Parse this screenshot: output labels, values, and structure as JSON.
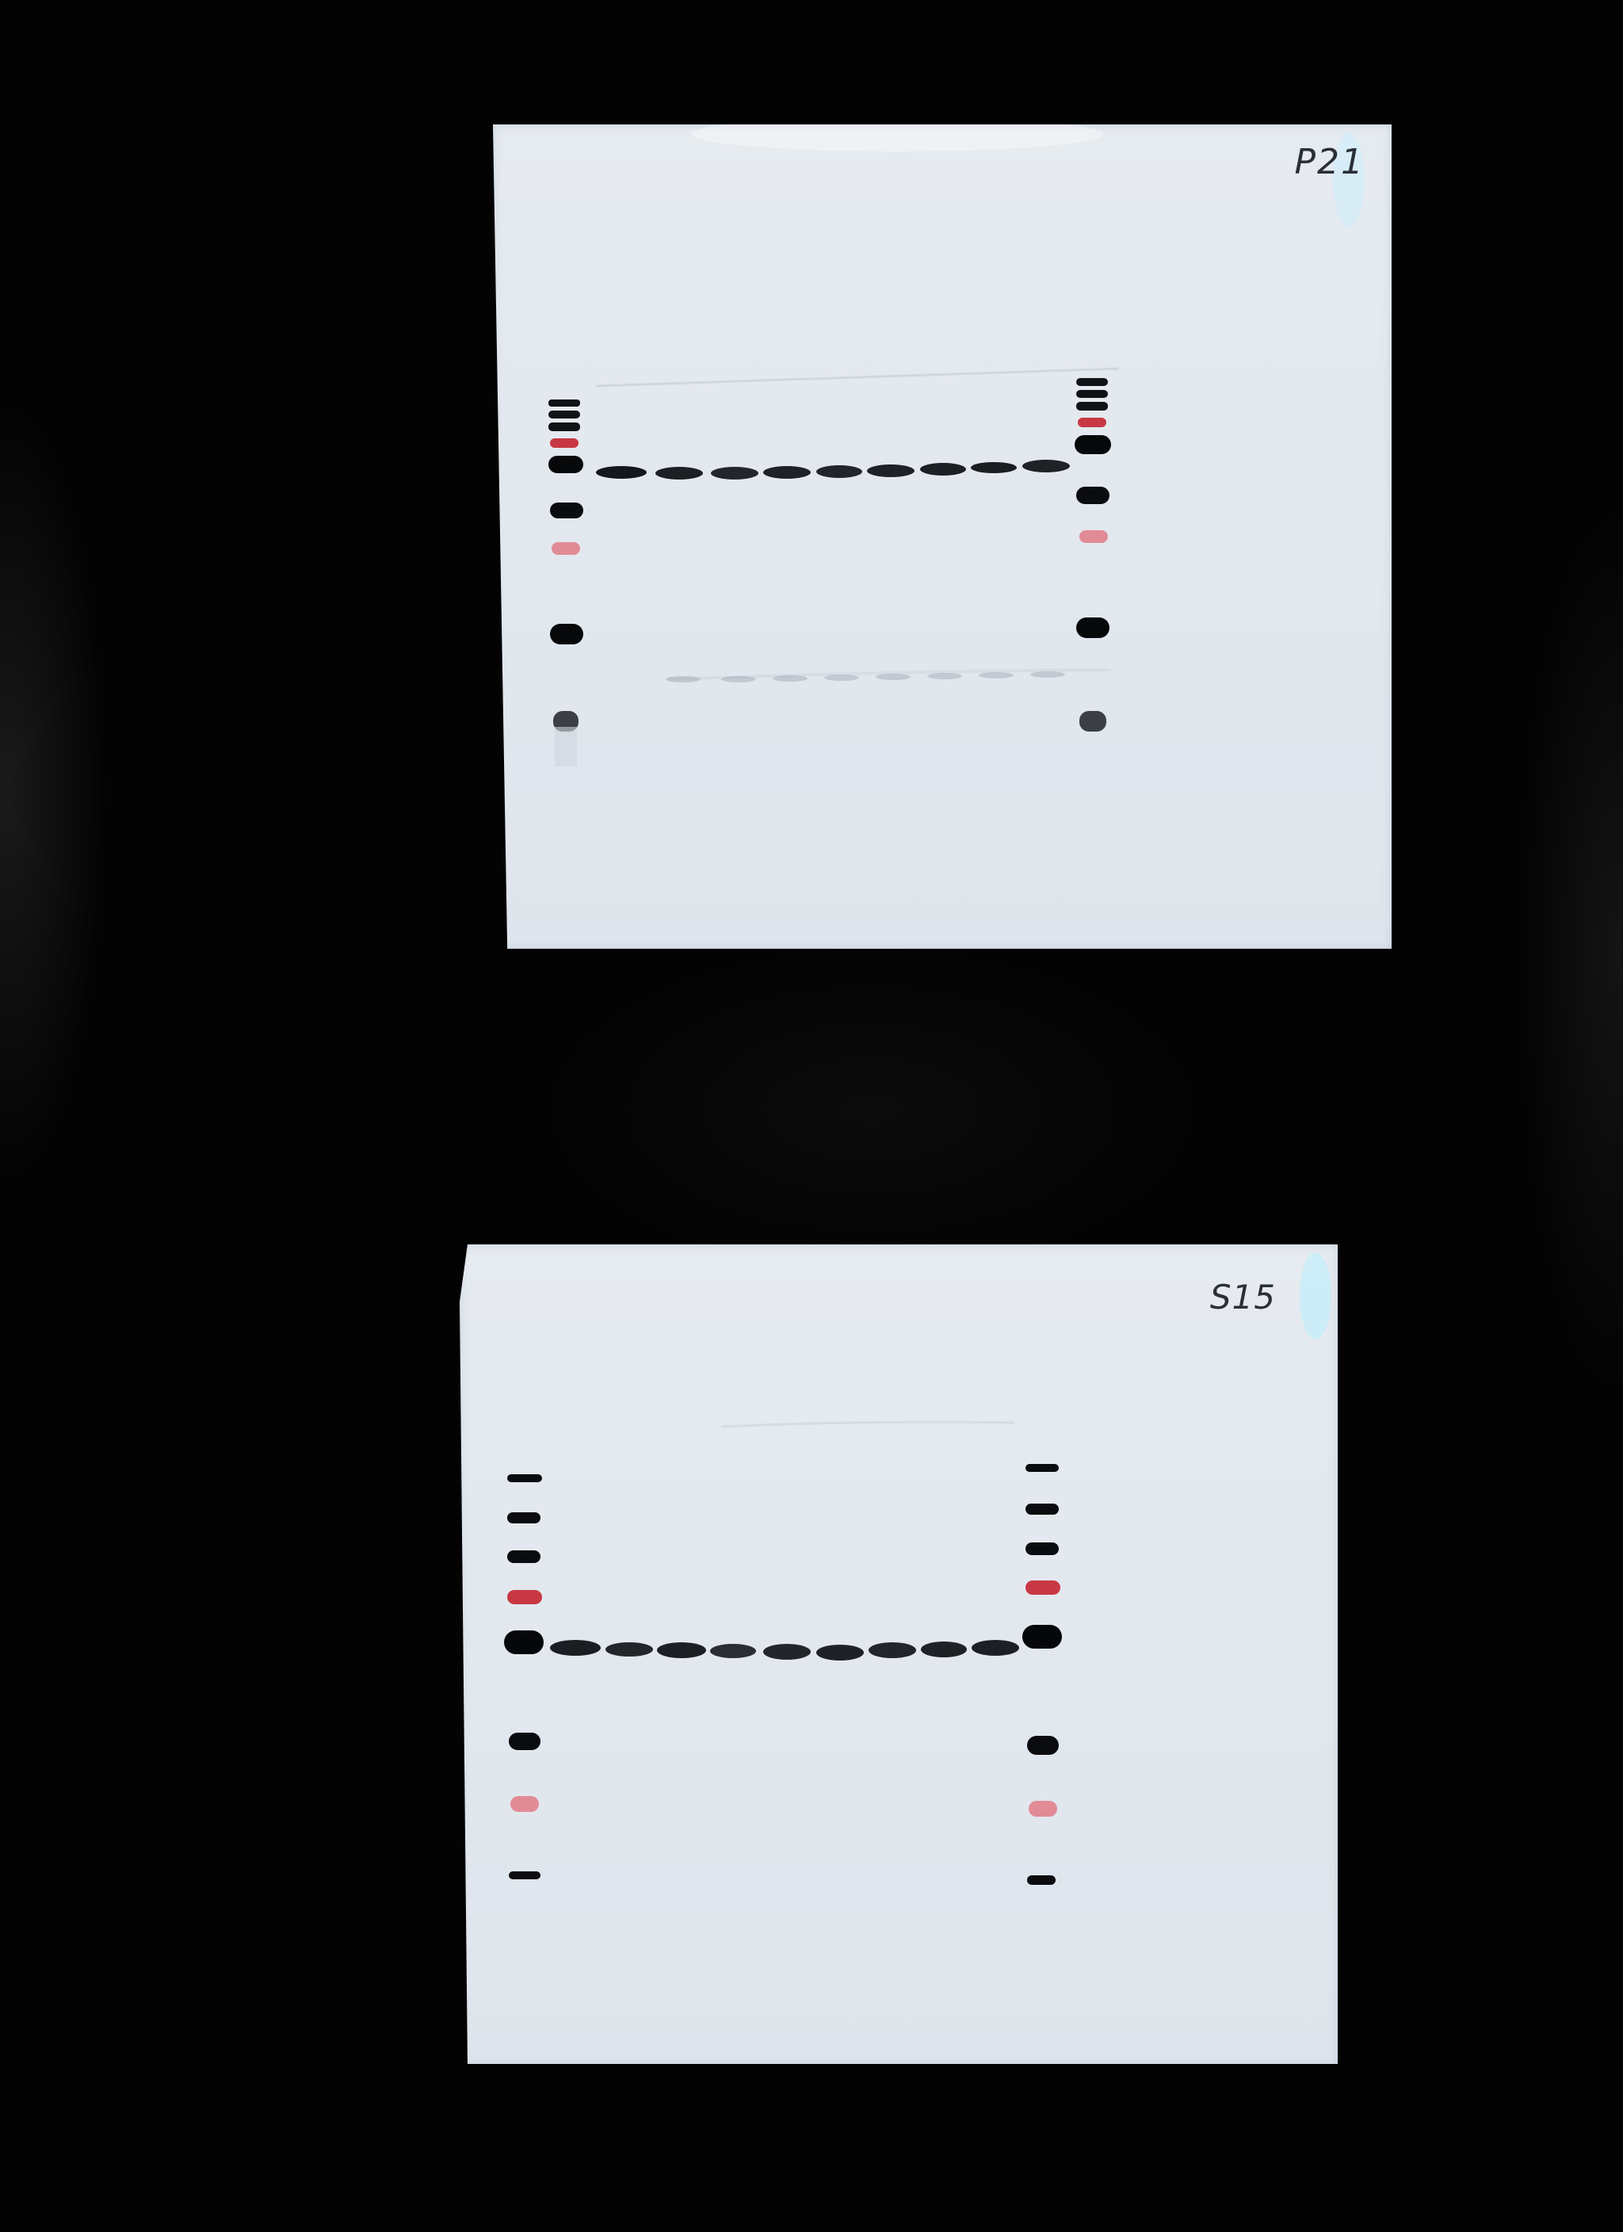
{
  "blots": [
    {
      "label": "P21",
      "lane_count": 9
    },
    {
      "label": "S15",
      "lane_count": 9
    }
  ],
  "colors": {
    "background": "#030303",
    "membrane": "#e3e9ef",
    "band": "#0b0d10",
    "ladder_red": "#d2303b"
  }
}
